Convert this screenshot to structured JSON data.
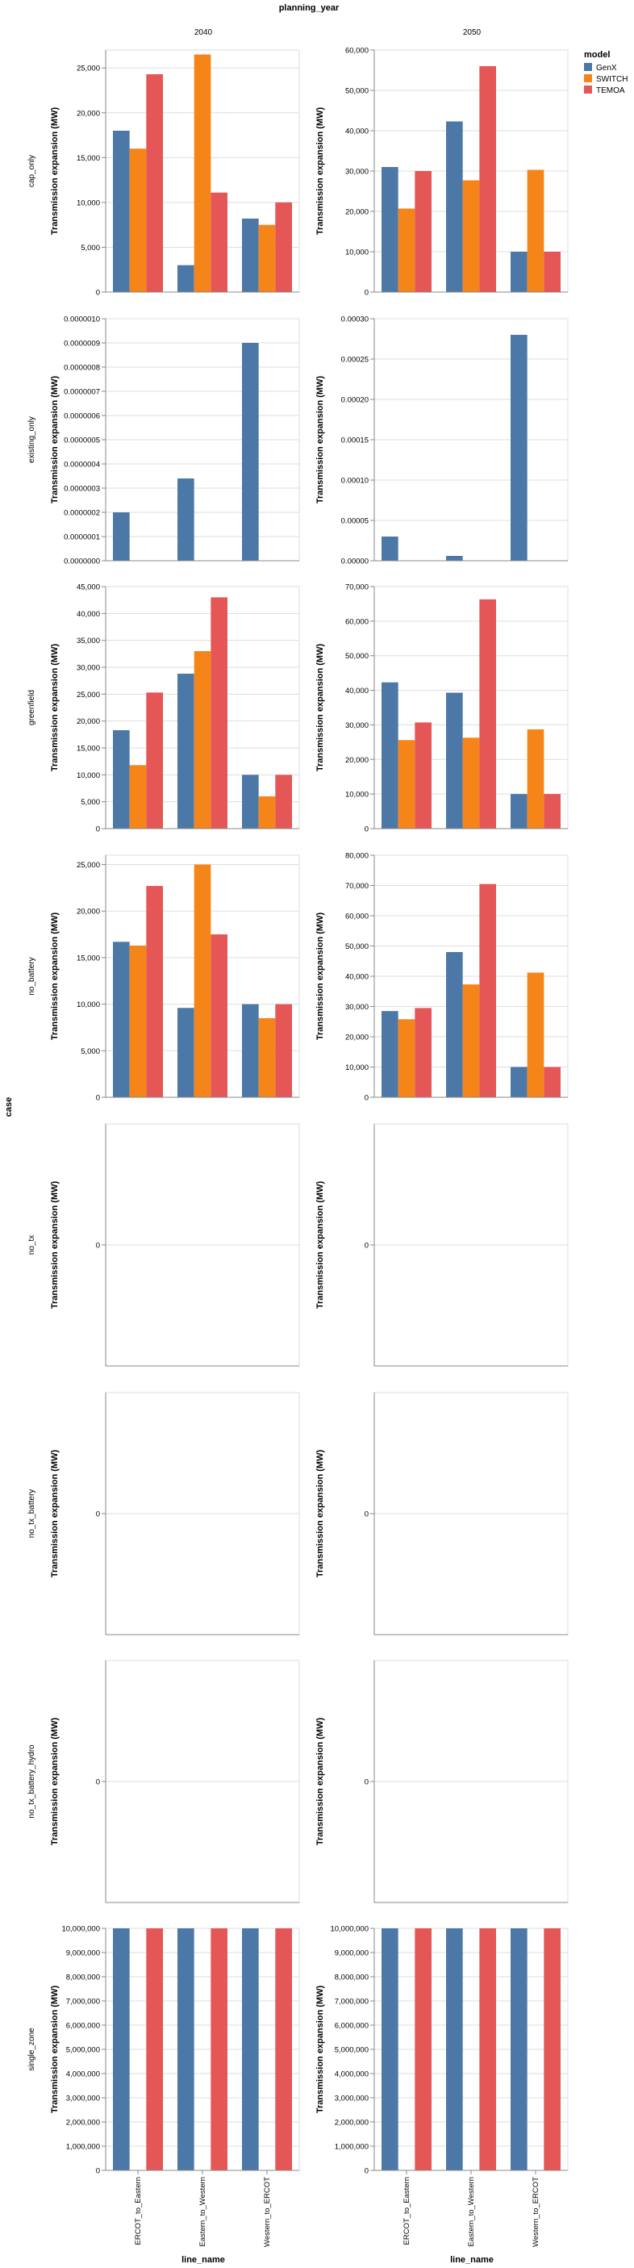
{
  "header": {
    "column_title": "planning_year",
    "row_title": "case",
    "x_title": "line_name",
    "columns": [
      "2040",
      "2050"
    ]
  },
  "legend": {
    "title": "model",
    "position": "top-right",
    "items": [
      {
        "name": "GenX",
        "color": "#4c78a8"
      },
      {
        "name": "SWITCH",
        "color": "#f58518"
      },
      {
        "name": "TEMOA",
        "color": "#e45756"
      }
    ]
  },
  "chart_data": {
    "type": "bar",
    "subtype": "grouped, faceted by row (case) and column (planning_year)",
    "categories": [
      "ERCOT_to_Eastern",
      "Eastern_to_Western",
      "Western_to_ERCOT"
    ],
    "series_names": [
      "GenX",
      "SWITCH",
      "TEMOA"
    ],
    "ylabel": "Transmission expansion (MW)",
    "xlabel": "line_name",
    "grid": true,
    "rows": [
      {
        "case": "cap_only",
        "panels": [
          {
            "year": "2040",
            "ylim": [
              0,
              27000
            ],
            "yticks": [
              "0",
              "5,000",
              "10,000",
              "15,000",
              "20,000",
              "25,000"
            ],
            "tickvals": [
              0,
              5000,
              10000,
              15000,
              20000,
              25000
            ],
            "values": {
              "GenX": [
                18000,
                3000,
                8200
              ],
              "SWITCH": [
                16000,
                26500,
                7500
              ],
              "TEMOA": [
                24300,
                11100,
                10000
              ]
            }
          },
          {
            "year": "2050",
            "ylim": [
              0,
              60000
            ],
            "yticks": [
              "0",
              "10,000",
              "20,000",
              "30,000",
              "40,000",
              "50,000",
              "60,000"
            ],
            "tickvals": [
              0,
              10000,
              20000,
              30000,
              40000,
              50000,
              60000
            ],
            "values": {
              "GenX": [
                31000,
                42300,
                10000
              ],
              "SWITCH": [
                20700,
                27700,
                30300
              ],
              "TEMOA": [
                30000,
                56000,
                10000
              ]
            }
          }
        ]
      },
      {
        "case": "existing_only",
        "panels": [
          {
            "year": "2040",
            "ylim": [
              0,
              1e-06
            ],
            "yticks": [
              "0.0000000",
              "0.0000001",
              "0.0000002",
              "0.0000003",
              "0.0000004",
              "0.0000005",
              "0.0000006",
              "0.0000007",
              "0.0000008",
              "0.0000009",
              "0.0000010"
            ],
            "tickvals": [
              0,
              1e-07,
              2e-07,
              3e-07,
              4e-07,
              5e-07,
              6e-07,
              7e-07,
              8e-07,
              9e-07,
              1e-06
            ],
            "values": {
              "GenX": [
                2e-07,
                3.4e-07,
                9e-07
              ],
              "SWITCH": [
                0,
                0,
                0
              ],
              "TEMOA": [
                0,
                0,
                0
              ]
            }
          },
          {
            "year": "2050",
            "ylim": [
              0,
              0.0003
            ],
            "yticks": [
              "0.00000",
              "0.00005",
              "0.00010",
              "0.00015",
              "0.00020",
              "0.00025",
              "0.00030"
            ],
            "tickvals": [
              0,
              5e-05,
              0.0001,
              0.00015,
              0.0002,
              0.00025,
              0.0003
            ],
            "values": {
              "GenX": [
                3e-05,
                6e-06,
                0.00028
              ],
              "SWITCH": [
                0,
                0,
                0
              ],
              "TEMOA": [
                0,
                0,
                0
              ]
            }
          }
        ]
      },
      {
        "case": "greenfield",
        "panels": [
          {
            "year": "2040",
            "ylim": [
              0,
              45000
            ],
            "yticks": [
              "0",
              "5,000",
              "10,000",
              "15,000",
              "20,000",
              "25,000",
              "30,000",
              "35,000",
              "40,000",
              "45,000"
            ],
            "tickvals": [
              0,
              5000,
              10000,
              15000,
              20000,
              25000,
              30000,
              35000,
              40000,
              45000
            ],
            "values": {
              "GenX": [
                18300,
                28800,
                10000
              ],
              "SWITCH": [
                11800,
                33000,
                6000
              ],
              "TEMOA": [
                25300,
                43000,
                10000
              ]
            }
          },
          {
            "year": "2050",
            "ylim": [
              0,
              70000
            ],
            "yticks": [
              "0",
              "10,000",
              "20,000",
              "30,000",
              "40,000",
              "50,000",
              "60,000",
              "70,000"
            ],
            "tickvals": [
              0,
              10000,
              20000,
              30000,
              40000,
              50000,
              60000,
              70000
            ],
            "values": {
              "GenX": [
                42300,
                39300,
                10000
              ],
              "SWITCH": [
                25600,
                26300,
                28700
              ],
              "TEMOA": [
                30700,
                66300,
                10000
              ]
            }
          }
        ]
      },
      {
        "case": "no_battery",
        "panels": [
          {
            "year": "2040",
            "ylim": [
              0,
              26000
            ],
            "yticks": [
              "0",
              "5,000",
              "10,000",
              "15,000",
              "20,000",
              "25,000"
            ],
            "tickvals": [
              0,
              5000,
              10000,
              15000,
              20000,
              25000
            ],
            "values": {
              "GenX": [
                16700,
                9600,
                10000
              ],
              "SWITCH": [
                16300,
                25000,
                8500
              ],
              "TEMOA": [
                22700,
                17500,
                10000
              ]
            }
          },
          {
            "year": "2050",
            "ylim": [
              0,
              80000
            ],
            "yticks": [
              "0",
              "10,000",
              "20,000",
              "30,000",
              "40,000",
              "50,000",
              "60,000",
              "70,000",
              "80,000"
            ],
            "tickvals": [
              0,
              10000,
              20000,
              30000,
              40000,
              50000,
              60000,
              70000,
              80000
            ],
            "values": {
              "GenX": [
                28500,
                48000,
                10000
              ],
              "SWITCH": [
                25800,
                37300,
                41200
              ],
              "TEMOA": [
                29500,
                70500,
                10000
              ]
            }
          }
        ]
      },
      {
        "case": "no_tx",
        "panels": [
          {
            "year": "2040",
            "ylim": [
              -1,
              1
            ],
            "yticks": [
              "0"
            ],
            "tickvals": [
              0
            ],
            "values": {
              "GenX": [
                0,
                0,
                0
              ],
              "SWITCH": [
                0,
                0,
                0
              ],
              "TEMOA": [
                0,
                0,
                0
              ]
            }
          },
          {
            "year": "2050",
            "ylim": [
              -1,
              1
            ],
            "yticks": [
              "0"
            ],
            "tickvals": [
              0
            ],
            "values": {
              "GenX": [
                0,
                0,
                0
              ],
              "SWITCH": [
                0,
                0,
                0
              ],
              "TEMOA": [
                0,
                0,
                0
              ]
            }
          }
        ]
      },
      {
        "case": "no_tx_battery",
        "panels": [
          {
            "year": "2040",
            "ylim": [
              -1,
              1
            ],
            "yticks": [
              "0"
            ],
            "tickvals": [
              0
            ],
            "values": {
              "GenX": [
                0,
                0,
                0
              ],
              "SWITCH": [
                0,
                0,
                0
              ],
              "TEMOA": [
                0,
                0,
                0
              ]
            }
          },
          {
            "year": "2050",
            "ylim": [
              -1,
              1
            ],
            "yticks": [
              "0"
            ],
            "tickvals": [
              0
            ],
            "values": {
              "GenX": [
                0,
                0,
                0
              ],
              "SWITCH": [
                0,
                0,
                0
              ],
              "TEMOA": [
                0,
                0,
                0
              ]
            }
          }
        ]
      },
      {
        "case": "no_tx_battery_hydro",
        "panels": [
          {
            "year": "2040",
            "ylim": [
              -1,
              1
            ],
            "yticks": [
              "0"
            ],
            "tickvals": [
              0
            ],
            "values": {
              "GenX": [
                0,
                0,
                0
              ],
              "SWITCH": [
                0,
                0,
                0
              ],
              "TEMOA": [
                0,
                0,
                0
              ]
            }
          },
          {
            "year": "2050",
            "ylim": [
              -1,
              1
            ],
            "yticks": [
              "0"
            ],
            "tickvals": [
              0
            ],
            "values": {
              "GenX": [
                0,
                0,
                0
              ],
              "SWITCH": [
                0,
                0,
                0
              ],
              "TEMOA": [
                0,
                0,
                0
              ]
            }
          }
        ]
      },
      {
        "case": "single_zone",
        "panels": [
          {
            "year": "2040",
            "ylim": [
              0,
              10000000
            ],
            "yticks": [
              "0",
              "1,000,000",
              "2,000,000",
              "3,000,000",
              "4,000,000",
              "5,000,000",
              "6,000,000",
              "7,000,000",
              "8,000,000",
              "9,000,000",
              "10,000,000"
            ],
            "tickvals": [
              0,
              1000000,
              2000000,
              3000000,
              4000000,
              5000000,
              6000000,
              7000000,
              8000000,
              9000000,
              10000000
            ],
            "values": {
              "GenX": [
                10000000,
                10000000,
                10000000
              ],
              "SWITCH": [
                0,
                0,
                0
              ],
              "TEMOA": [
                10000000,
                10000000,
                10000000
              ]
            }
          },
          {
            "year": "2050",
            "ylim": [
              0,
              10000000
            ],
            "yticks": [
              "0",
              "1,000,000",
              "2,000,000",
              "3,000,000",
              "4,000,000",
              "5,000,000",
              "6,000,000",
              "7,000,000",
              "8,000,000",
              "9,000,000",
              "10,000,000"
            ],
            "tickvals": [
              0,
              1000000,
              2000000,
              3000000,
              4000000,
              5000000,
              6000000,
              7000000,
              8000000,
              9000000,
              10000000
            ],
            "values": {
              "GenX": [
                10000000,
                10000000,
                10000000
              ],
              "SWITCH": [
                0,
                0,
                0
              ],
              "TEMOA": [
                10000000,
                10000000,
                10000000
              ]
            }
          }
        ]
      }
    ]
  }
}
